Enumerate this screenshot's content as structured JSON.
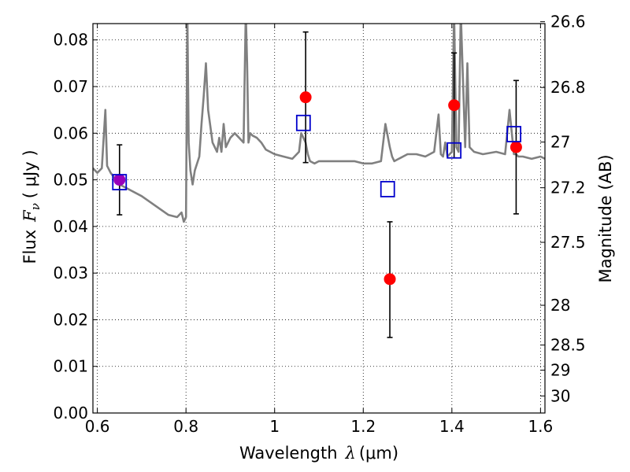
{
  "chart_data": {
    "type": "scatter",
    "xlabel": "Wavelength",
    "xlabel_symbol": "λ",
    "xlabel_unit": "(μm)",
    "ylabel": "Flux",
    "ylabel_symbol": "F",
    "ylabel_subscript": "ν",
    "ylabel_unit": "( μJy )",
    "y2label": "Magnitude (AB)",
    "xlim": [
      0.59,
      1.61
    ],
    "ylim": [
      0.0,
      0.0835
    ],
    "grid": true,
    "x_ticks": [
      0.6,
      0.8,
      1.0,
      1.2,
      1.4,
      1.6
    ],
    "x_tick_labels": [
      "0.6",
      "0.8",
      "1",
      "1.2",
      "1.4",
      "1.6"
    ],
    "y_ticks": [
      0.0,
      0.01,
      0.02,
      0.03,
      0.04,
      0.05,
      0.06,
      0.07,
      0.08
    ],
    "y_tick_labels": [
      "0.00",
      "0.01",
      "0.02",
      "0.03",
      "0.04",
      "0.05",
      "0.06",
      "0.07",
      "0.08"
    ],
    "y2_ticks": [
      {
        "label": "26.6",
        "flux": 0.0839
      },
      {
        "label": "26.8",
        "flux": 0.0698
      },
      {
        "label": "27",
        "flux": 0.0581
      },
      {
        "label": "27.2",
        "flux": 0.0483
      },
      {
        "label": "27.5",
        "flux": 0.0366
      },
      {
        "label": "28",
        "flux": 0.0231
      },
      {
        "label": "28.5",
        "flux": 0.01457
      },
      {
        "label": "29",
        "flux": 0.00919
      },
      {
        "label": "30",
        "flux": 0.00366
      }
    ],
    "observed": {
      "color": "#ff0000",
      "x": [
        0.65,
        1.07,
        1.26,
        1.405,
        1.545
      ],
      "y": [
        0.05,
        0.0677,
        0.0287,
        0.066,
        0.057
      ],
      "err_low": [
        0.0425,
        0.0537,
        0.0162,
        0.0547,
        0.0427
      ],
      "err_high": [
        0.0575,
        0.0817,
        0.041,
        0.0772,
        0.0713
      ]
    },
    "model_photometry": {
      "color": "#0000cc",
      "x": [
        0.65,
        1.065,
        1.255,
        1.405,
        1.54
      ],
      "y": [
        0.0495,
        0.0622,
        0.048,
        0.0563,
        0.0598
      ]
    },
    "overlap_color": "#9900bb",
    "model_spectrum": {
      "color": "#808080",
      "x": [
        0.59,
        0.6,
        0.61,
        0.618,
        0.622,
        0.63,
        0.65,
        0.67,
        0.7,
        0.73,
        0.76,
        0.78,
        0.79,
        0.795,
        0.8,
        0.803,
        0.806,
        0.81,
        0.815,
        0.82,
        0.83,
        0.835,
        0.84,
        0.845,
        0.85,
        0.86,
        0.87,
        0.875,
        0.88,
        0.885,
        0.89,
        0.9,
        0.91,
        0.92,
        0.93,
        0.935,
        0.938,
        0.941,
        0.945,
        0.95,
        0.96,
        0.97,
        0.98,
        1.0,
        1.02,
        1.04,
        1.055,
        1.06,
        1.07,
        1.075,
        1.08,
        1.09,
        1.1,
        1.12,
        1.15,
        1.18,
        1.2,
        1.22,
        1.24,
        1.25,
        1.26,
        1.265,
        1.27,
        1.28,
        1.3,
        1.32,
        1.34,
        1.36,
        1.37,
        1.375,
        1.38,
        1.385,
        1.39,
        1.4,
        1.405,
        1.41,
        1.415,
        1.42,
        1.43,
        1.435,
        1.44,
        1.45,
        1.47,
        1.5,
        1.52,
        1.53,
        1.54,
        1.545,
        1.55,
        1.56,
        1.58,
        1.6,
        1.61
      ],
      "y": [
        0.0525,
        0.0515,
        0.0525,
        0.065,
        0.053,
        0.0515,
        0.049,
        0.048,
        0.0465,
        0.0445,
        0.0425,
        0.042,
        0.043,
        0.041,
        0.042,
        0.086,
        0.058,
        0.052,
        0.049,
        0.052,
        0.055,
        0.062,
        0.068,
        0.075,
        0.065,
        0.058,
        0.056,
        0.059,
        0.056,
        0.062,
        0.057,
        0.059,
        0.06,
        0.059,
        0.058,
        0.086,
        0.075,
        0.058,
        0.06,
        0.0595,
        0.059,
        0.058,
        0.0565,
        0.0555,
        0.055,
        0.0545,
        0.056,
        0.06,
        0.058,
        0.0555,
        0.054,
        0.0535,
        0.054,
        0.054,
        0.054,
        0.054,
        0.0535,
        0.0535,
        0.054,
        0.062,
        0.057,
        0.055,
        0.054,
        0.0545,
        0.0555,
        0.0555,
        0.055,
        0.056,
        0.064,
        0.0555,
        0.055,
        0.058,
        0.055,
        0.056,
        0.086,
        0.057,
        0.056,
        0.086,
        0.057,
        0.075,
        0.057,
        0.056,
        0.0555,
        0.056,
        0.0555,
        0.065,
        0.0555,
        0.0555,
        0.055,
        0.055,
        0.0545,
        0.055,
        0.0545
      ]
    }
  }
}
